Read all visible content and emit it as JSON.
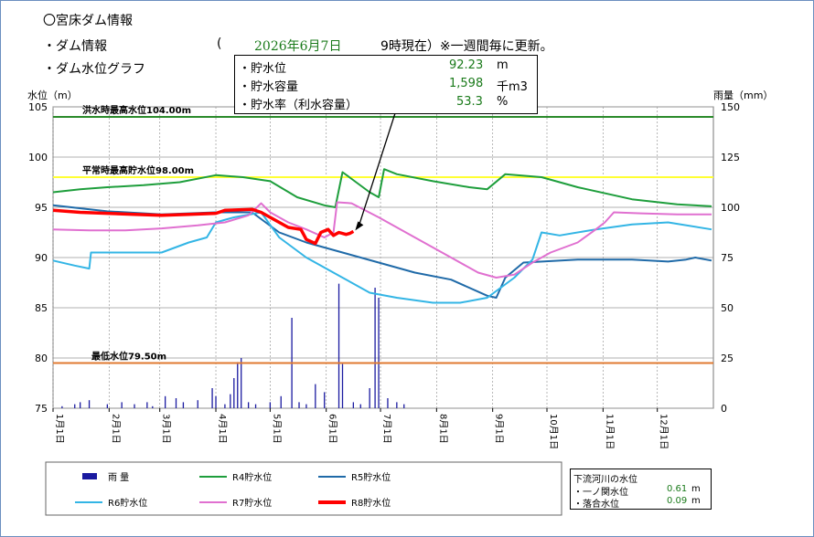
{
  "header": {
    "title": "〇宮床ダム情報",
    "dam_info_label": "・ダム情報",
    "open_paren": "(",
    "date": "2026年6月7日",
    "time_text": "9時現在）※一週間毎に更新。",
    "graph_label": "・ダム水位グラフ"
  },
  "current": {
    "rows": [
      {
        "label": "・貯水位",
        "value": "92.23",
        "unit": "m"
      },
      {
        "label": "・貯水容量",
        "value": "1,598",
        "unit": "千m3"
      },
      {
        "label": "・貯水率（利水容量）",
        "value": "53.3",
        "unit": "%"
      }
    ]
  },
  "downstream": {
    "title": "下流河川の水位",
    "rows": [
      {
        "label": "・一ノ関水位",
        "value": "0.61",
        "unit": "m"
      },
      {
        "label": "・落合水位",
        "value": "0.09",
        "unit": "m"
      }
    ]
  },
  "colors": {
    "rain": "#1a1aa0",
    "R4": "#1e9e3c",
    "R5": "#1f6aa8",
    "R6": "#33b5e5",
    "R7": "#e070d0",
    "R8": "#ff0000",
    "flood": "#2a8a2a",
    "normal": "#ffff33",
    "min": "#e07a30"
  },
  "chart_data": {
    "type": "line",
    "ylabel_left": "水位（m）",
    "ylabel_right": "雨量（mm）",
    "ylim_left": [
      75,
      105
    ],
    "ylim_right": [
      0,
      150
    ],
    "yticks_left": [
      "105",
      "100",
      "95",
      "90",
      "85",
      "80",
      "75"
    ],
    "yticks_right": [
      "150",
      "125",
      "100",
      "75",
      "50",
      "25",
      "0"
    ],
    "x_labels": [
      "1月1日",
      "2月1日",
      "3月1日",
      "4月1日",
      "5月1日",
      "6月1日",
      "7月1日",
      "8月1日",
      "9月1日",
      "10月1日",
      "11月1日",
      "12月1日"
    ],
    "ref_lines": [
      {
        "key": "flood",
        "label": "洪水時最高水位104.00m",
        "value": 104.0
      },
      {
        "key": "normal",
        "label": "平常時最高貯水位98.00m",
        "value": 98.0
      },
      {
        "key": "min",
        "label": "最低水位79.50m",
        "value": 79.5
      }
    ],
    "legend": [
      "雨 量",
      "R4貯水位",
      "R5貯水位",
      "R6貯水位",
      "R7貯水位",
      "R8貯水位"
    ],
    "series": [
      {
        "name": "R4貯水位",
        "key": "R4",
        "points": [
          [
            0,
            96.5
          ],
          [
            15,
            96.8
          ],
          [
            30,
            97
          ],
          [
            50,
            97.2
          ],
          [
            70,
            97.5
          ],
          [
            90,
            98.2
          ],
          [
            105,
            98
          ],
          [
            120,
            97.6
          ],
          [
            135,
            96
          ],
          [
            150,
            95.2
          ],
          [
            156,
            95
          ],
          [
            160,
            98.5
          ],
          [
            175,
            96.5
          ],
          [
            180,
            96
          ],
          [
            183,
            98.8
          ],
          [
            190,
            98.3
          ],
          [
            210,
            97.6
          ],
          [
            230,
            97
          ],
          [
            240,
            96.8
          ],
          [
            250,
            98.3
          ],
          [
            270,
            98
          ],
          [
            290,
            97
          ],
          [
            320,
            95.8
          ],
          [
            345,
            95.3
          ],
          [
            364,
            95.1
          ]
        ]
      },
      {
        "name": "R5貯水位",
        "key": "R5",
        "points": [
          [
            0,
            95.2
          ],
          [
            30,
            94.6
          ],
          [
            60,
            94.3
          ],
          [
            90,
            94.5
          ],
          [
            110,
            94.5
          ],
          [
            125,
            92.5
          ],
          [
            140,
            91.5
          ],
          [
            160,
            90.5
          ],
          [
            180,
            89.5
          ],
          [
            200,
            88.5
          ],
          [
            220,
            87.8
          ],
          [
            240,
            86.2
          ],
          [
            245,
            86
          ],
          [
            250,
            88
          ],
          [
            260,
            89.5
          ],
          [
            290,
            89.8
          ],
          [
            320,
            89.8
          ],
          [
            340,
            89.6
          ],
          [
            350,
            89.8
          ],
          [
            355,
            90
          ],
          [
            364,
            89.7
          ]
        ]
      },
      {
        "name": "R6貯水位",
        "key": "R6",
        "points": [
          [
            0,
            89.7
          ],
          [
            12,
            89.2
          ],
          [
            20,
            88.9
          ],
          [
            21,
            90.5
          ],
          [
            40,
            90.5
          ],
          [
            60,
            90.5
          ],
          [
            75,
            91.5
          ],
          [
            85,
            92
          ],
          [
            90,
            93.5
          ],
          [
            100,
            94
          ],
          [
            115,
            94.5
          ],
          [
            125,
            92
          ],
          [
            140,
            90
          ],
          [
            160,
            88
          ],
          [
            175,
            86.5
          ],
          [
            190,
            86
          ],
          [
            210,
            85.5
          ],
          [
            225,
            85.5
          ],
          [
            240,
            86
          ],
          [
            255,
            88
          ],
          [
            265,
            89.8
          ],
          [
            270,
            92.5
          ],
          [
            280,
            92.2
          ],
          [
            300,
            92.8
          ],
          [
            320,
            93.3
          ],
          [
            340,
            93.5
          ],
          [
            364,
            92.8
          ]
        ]
      },
      {
        "name": "R7貯水位",
        "key": "R7",
        "points": [
          [
            0,
            92.8
          ],
          [
            20,
            92.7
          ],
          [
            40,
            92.7
          ],
          [
            60,
            92.9
          ],
          [
            80,
            93.2
          ],
          [
            95,
            93.5
          ],
          [
            108,
            94.2
          ],
          [
            115,
            95.4
          ],
          [
            120,
            94.5
          ],
          [
            130,
            93.5
          ],
          [
            140,
            92.8
          ],
          [
            150,
            92
          ],
          [
            155,
            92.5
          ],
          [
            157,
            95.5
          ],
          [
            165,
            95.4
          ],
          [
            180,
            94
          ],
          [
            200,
            92
          ],
          [
            220,
            90
          ],
          [
            235,
            88.5
          ],
          [
            245,
            88
          ],
          [
            255,
            88.3
          ],
          [
            265,
            89.5
          ],
          [
            275,
            90.5
          ],
          [
            290,
            91.5
          ],
          [
            300,
            92.8
          ],
          [
            305,
            93.5
          ],
          [
            310,
            94.5
          ],
          [
            325,
            94.4
          ],
          [
            345,
            94.3
          ],
          [
            364,
            94.3
          ]
        ]
      },
      {
        "name": "R8貯水位",
        "key": "R8",
        "points": [
          [
            0,
            94.7
          ],
          [
            15,
            94.5
          ],
          [
            30,
            94.4
          ],
          [
            45,
            94.3
          ],
          [
            60,
            94.2
          ],
          [
            75,
            94.3
          ],
          [
            90,
            94.4
          ],
          [
            95,
            94.7
          ],
          [
            110,
            94.8
          ],
          [
            115,
            94.5
          ],
          [
            120,
            94
          ],
          [
            125,
            93.5
          ],
          [
            130,
            93
          ],
          [
            137,
            92.8
          ],
          [
            140,
            91.8
          ],
          [
            145,
            91.4
          ],
          [
            148,
            92.5
          ],
          [
            152,
            92.8
          ],
          [
            155,
            92.2
          ],
          [
            158,
            92.5
          ],
          [
            162,
            92.3
          ],
          [
            164,
            92.4
          ],
          [
            166,
            92.6
          ]
        ]
      }
    ],
    "rain": [
      [
        5,
        1
      ],
      [
        12,
        2
      ],
      [
        15,
        3
      ],
      [
        20,
        4
      ],
      [
        30,
        2
      ],
      [
        38,
        3
      ],
      [
        45,
        2
      ],
      [
        52,
        3
      ],
      [
        55,
        1
      ],
      [
        62,
        6
      ],
      [
        68,
        5
      ],
      [
        72,
        3
      ],
      [
        80,
        4
      ],
      [
        88,
        10
      ],
      [
        90,
        6
      ],
      [
        95,
        2
      ],
      [
        98,
        7
      ],
      [
        100,
        15
      ],
      [
        102,
        23
      ],
      [
        104,
        25
      ],
      [
        108,
        3
      ],
      [
        112,
        2
      ],
      [
        120,
        3
      ],
      [
        126,
        6
      ],
      [
        132,
        45
      ],
      [
        136,
        3
      ],
      [
        140,
        2
      ],
      [
        145,
        12
      ],
      [
        150,
        8
      ],
      [
        158,
        62
      ],
      [
        160,
        22
      ],
      [
        166,
        3
      ],
      [
        170,
        2
      ],
      [
        175,
        10
      ],
      [
        178,
        60
      ],
      [
        180,
        55
      ],
      [
        185,
        5
      ],
      [
        190,
        3
      ],
      [
        194,
        2
      ]
    ]
  }
}
